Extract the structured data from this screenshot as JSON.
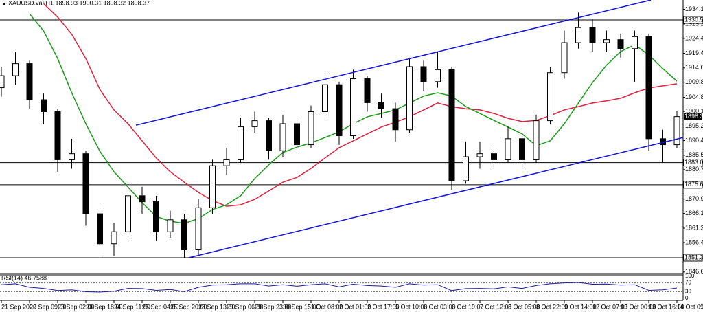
{
  "chart_data": {
    "type": "candlestick",
    "title": "XAUUSD.var,H1  1898.93 1900.31 1898.32 1898.37",
    "categories": [
      "21 Sep 2020",
      null,
      "22 Sep 09:00",
      null,
      "23 Sep 02:00",
      null,
      "23 Sep 18:00",
      null,
      "24 Sep 11:00",
      null,
      "25 Sep 04:00",
      null,
      "25 Sep 20:00",
      null,
      "28 Sep 13:00",
      null,
      "29 Sep 06:00",
      null,
      "29 Sep 23:00",
      null,
      "30 Sep 15:00",
      null,
      "1 Oct 08:00",
      null,
      "2 Oct 01:00",
      null,
      "2 Oct 17:00",
      null,
      "5 Oct 10:00",
      null,
      "6 Oct 03:00",
      null,
      "6 Oct 19:00",
      null,
      "7 Oct 12:00",
      null,
      "8 Oct 05:00",
      null,
      "8 Oct 22:00",
      null,
      "9 Oct 14:00",
      null,
      "12 Oct 07:00",
      null,
      "13 Oct 00:00",
      null,
      "13 Oct 16:00",
      null,
      "14 Oct 09:00"
    ],
    "open": [
      1908,
      1912,
      1916,
      1904,
      1900,
      1884,
      1886,
      1866,
      1856,
      1860,
      1872,
      1870,
      1860,
      1864,
      1854,
      1868,
      1882,
      1884,
      1895,
      1897,
      1887,
      1896,
      1889,
      1900,
      1909,
      1892,
      1911,
      1903,
      1901,
      1894,
      1915,
      1910,
      1914,
      1877,
      1885,
      1886,
      1884,
      1891,
      1884,
      1897,
      1913,
      1923,
      1928,
      1923,
      1924,
      1921,
      1925,
      1891,
      1889
    ],
    "high": [
      1915,
      1920,
      1917,
      1906,
      1901,
      1891,
      1887,
      1868,
      1863,
      1876,
      1875,
      1872,
      1867,
      1866,
      1871,
      1884,
      1888,
      1898,
      1900,
      1898,
      1899,
      1897,
      1902,
      1912,
      1910,
      1914,
      1912,
      1906,
      1903,
      1918,
      1917,
      1920,
      1915,
      1890,
      1890,
      1889,
      1895,
      1893,
      1899,
      1915,
      1927,
      1933,
      1931,
      1927,
      1926,
      1927,
      1926,
      1894,
      1900.31
    ],
    "low": [
      1905,
      1909,
      1901,
      1896,
      1880,
      1881,
      1862,
      1852,
      1852,
      1858,
      1866,
      1857,
      1858,
      1851.37,
      1852,
      1866,
      1879,
      1883,
      1893,
      1884,
      1885,
      1886,
      1888,
      1898,
      1889,
      1891,
      1900,
      1898,
      1890,
      1893,
      1907,
      1908,
      1874,
      1876,
      1881,
      1882,
      1883,
      1882,
      1883,
      1896,
      1911,
      1921,
      1920,
      1920,
      1918,
      1910,
      1887,
      1883,
      1888
    ],
    "close": [
      1912,
      1916,
      1904,
      1900,
      1884,
      1886,
      1866,
      1856,
      1860,
      1872,
      1870,
      1860,
      1864,
      1854,
      1868,
      1882,
      1884,
      1895,
      1897,
      1887,
      1896,
      1889,
      1900,
      1909,
      1892,
      1911,
      1903,
      1901,
      1894,
      1915,
      1910,
      1914,
      1877,
      1885,
      1886,
      1884,
      1891,
      1884,
      1897,
      1913,
      1923,
      1928,
      1923,
      1924,
      1921,
      1925,
      1891,
      1889,
      1898.37
    ],
    "up_color": "#ffffff",
    "down_color": "#000000",
    "wick_color": "#000000",
    "moving_averages": [
      {
        "color": "#e0203c",
        "values": [
          null,
          null,
          null,
          1936,
          1931.5,
          1925.8,
          1917.7,
          1907.4,
          1900.6,
          1896,
          1890.3,
          1884.6,
          1880,
          1876.5,
          1873.1,
          1870.4,
          1868.5,
          1869,
          1870.8,
          1873.6,
          1876.5,
          1878.1,
          1881.1,
          1884.6,
          1888,
          1890.3,
          1892.6,
          1894.9,
          1896.5,
          1898.3,
          1900.6,
          1902.9,
          1901.7,
          1901,
          1900.6,
          1899.4,
          1897.8,
          1896.7,
          1897.1,
          1898.7,
          1900.6,
          1901.7,
          1902.9,
          1903.6,
          1904.5,
          1906.3,
          1907.9,
          1908.6,
          1909.3
        ]
      },
      {
        "color": "#1a9a1a",
        "values": [
          null,
          null,
          1932.6,
          1926.9,
          1917.7,
          1906.3,
          1896,
          1886.8,
          1880,
          1874.9,
          1869.7,
          1865.1,
          1863.5,
          1862.8,
          1864.4,
          1867.4,
          1869,
          1872,
          1877.7,
          1882.3,
          1886.4,
          1888.2,
          1889.6,
          1891.4,
          1893.3,
          1896,
          1898.3,
          1899.4,
          1900.6,
          1902.9,
          1905.2,
          1906.3,
          1905.2,
          1901.7,
          1899.4,
          1897.1,
          1894.9,
          1892.6,
          1888.7,
          1890.3,
          1896,
          1902.9,
          1909.7,
          1915.5,
          1920,
          1922.3,
          1918.9,
          1914.3,
          1910.2
        ]
      }
    ],
    "trendlines": [
      {
        "color": "#1010e0",
        "x": [
          9.56,
          46.15
        ],
        "y": [
          1895.5,
          1937.2
        ]
      },
      {
        "color": "#1010e0",
        "x": [
          13.32,
          48.44
        ],
        "y": [
          1851.37,
          1891.4
        ]
      }
    ],
    "levels": [
      1930.57,
      1883.05,
      1875.67,
      1851.37
    ],
    "ylim": [
      1846.1,
      1937.2
    ],
    "yticks": [
      {
        "value": 1934.1,
        "label": "1934.10"
      },
      {
        "value": 1929.2,
        "label": "1929.20"
      },
      {
        "value": 1924.4,
        "label": "1924.40"
      },
      1919.45,
      {
        "value": 1914.6,
        "label": "1914.60"
      },
      {
        "value": 1909.8,
        "label": "1909.80"
      },
      {
        "value": 1904.8,
        "label": "1904.80"
      },
      {
        "value": 1900.1,
        "label": "1900.10"
      },
      {
        "value": 1895.2,
        "label": "1895.20"
      },
      {
        "value": 1890.4,
        "label": "1890.40"
      },
      {
        "value": 1885.5,
        "label": "1885.50"
      },
      {
        "value": 1880.7,
        "label": "1880.70"
      },
      {
        "value": 1870.9,
        "label": "1870.90"
      },
      {
        "value": 1866.1,
        "label": "1866.10"
      },
      {
        "value": 1861.2,
        "label": "1861.20"
      },
      {
        "value": 1856.4,
        "label": "1856.40"
      },
      {
        "value": 1846.6,
        "label": "1846.60"
      }
    ],
    "rsi": {
      "label": "RSI(14) 46.7588",
      "color": "#1a1aa0",
      "values": [
        62,
        66,
        50,
        45,
        35,
        38,
        30,
        28,
        32,
        45,
        44,
        36,
        40,
        30,
        50,
        60,
        62,
        66,
        66,
        56,
        62,
        55,
        62,
        66,
        52,
        64,
        58,
        56,
        50,
        66,
        60,
        62,
        35,
        44,
        45,
        43,
        52,
        45,
        58,
        66,
        70,
        72,
        64,
        65,
        60,
        62,
        36,
        38,
        46.7588
      ],
      "ylim": [
        0,
        100
      ],
      "yticks": [
        100,
        70,
        30,
        0
      ]
    }
  }
}
